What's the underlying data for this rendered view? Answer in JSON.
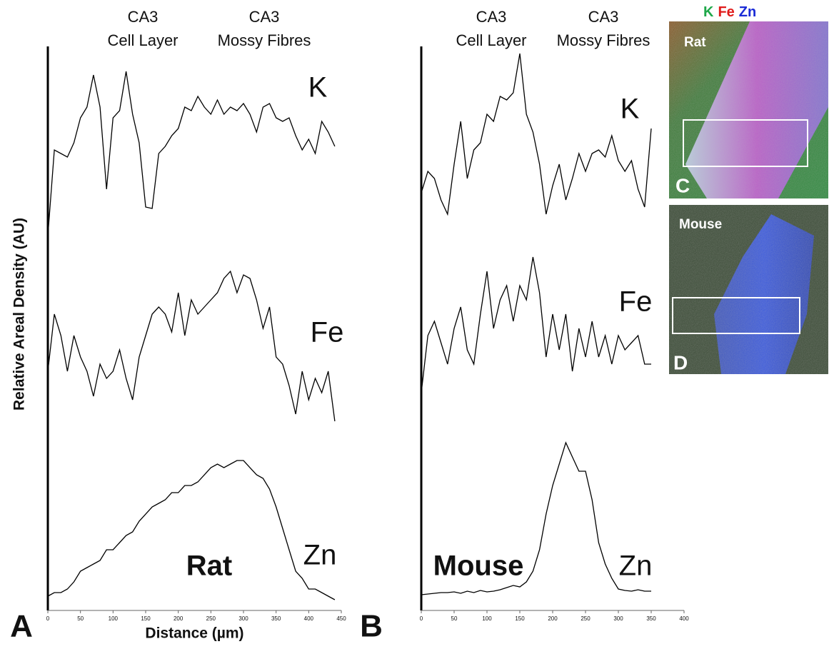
{
  "chart_data": [
    {
      "type": "line",
      "panel": "A",
      "species": "Rat",
      "region_labels": [
        [
          "CA3",
          "Cell Layer"
        ],
        [
          "CA3",
          "Mossy Fibres"
        ]
      ],
      "x_label": "Distance (µm)",
      "y_label": "Relative Areal Density (AU)",
      "xlim": [
        0,
        450
      ],
      "xticks": [
        0,
        50,
        100,
        150,
        200,
        250,
        300,
        350,
        400,
        450
      ],
      "ylim": [
        0,
        790
      ],
      "x": [
        0,
        10,
        20,
        30,
        40,
        50,
        60,
        70,
        80,
        90,
        100,
        110,
        120,
        130,
        140,
        150,
        160,
        170,
        180,
        190,
        200,
        210,
        220,
        230,
        240,
        250,
        260,
        270,
        280,
        290,
        300,
        310,
        320,
        330,
        340,
        350,
        360,
        370,
        380,
        390,
        400,
        410,
        420,
        430,
        440
      ],
      "series": [
        {
          "name": "K",
          "color": "#000000",
          "values": [
            525,
            645,
            640,
            635,
            655,
            690,
            705,
            750,
            705,
            590,
            690,
            700,
            755,
            695,
            655,
            565,
            563,
            640,
            650,
            665,
            675,
            705,
            700,
            720,
            705,
            695,
            715,
            695,
            705,
            700,
            710,
            695,
            670,
            705,
            710,
            690,
            685,
            690,
            665,
            645,
            660,
            640,
            685,
            670,
            650
          ]
        },
        {
          "name": "Fe",
          "color": "#000000",
          "values": [
            335,
            415,
            385,
            335,
            385,
            355,
            335,
            300,
            345,
            325,
            335,
            365,
            325,
            295,
            355,
            385,
            415,
            425,
            415,
            390,
            445,
            385,
            435,
            415,
            425,
            435,
            445,
            465,
            475,
            445,
            470,
            465,
            435,
            395,
            425,
            355,
            345,
            315,
            275,
            335,
            295,
            325,
            305,
            335,
            265
          ]
        },
        {
          "name": "Zn",
          "color": "#000000",
          "values": [
            20,
            25,
            25,
            30,
            40,
            55,
            60,
            65,
            70,
            85,
            85,
            95,
            105,
            110,
            125,
            135,
            145,
            150,
            155,
            165,
            165,
            175,
            175,
            180,
            190,
            200,
            205,
            200,
            205,
            210,
            210,
            200,
            190,
            185,
            170,
            145,
            115,
            85,
            55,
            45,
            30,
            30,
            25,
            20,
            15
          ]
        }
      ]
    },
    {
      "type": "line",
      "panel": "B",
      "species": "Mouse",
      "region_labels": [
        [
          "CA3",
          "Cell Layer"
        ],
        [
          "CA3",
          "Mossy Fibres"
        ]
      ],
      "xlim": [
        0,
        400
      ],
      "xticks": [
        0,
        50,
        100,
        150,
        200,
        250,
        300,
        350,
        400
      ],
      "ylim": [
        0,
        790
      ],
      "x": [
        0,
        10,
        20,
        30,
        40,
        50,
        60,
        70,
        80,
        90,
        100,
        110,
        120,
        130,
        140,
        150,
        160,
        170,
        180,
        190,
        200,
        210,
        220,
        230,
        240,
        250,
        260,
        270,
        280,
        290,
        300,
        310,
        320,
        330,
        340,
        350
      ],
      "series": [
        {
          "name": "K",
          "color": "#000000",
          "values": [
            585,
            615,
            605,
            575,
            555,
            625,
            685,
            605,
            645,
            655,
            695,
            685,
            720,
            715,
            725,
            780,
            695,
            670,
            625,
            555,
            595,
            625,
            575,
            605,
            640,
            615,
            640,
            645,
            635,
            665,
            630,
            615,
            630,
            590,
            565,
            675
          ]
        },
        {
          "name": "Fe",
          "color": "#000000",
          "values": [
            305,
            385,
            405,
            375,
            345,
            395,
            425,
            365,
            345,
            415,
            475,
            395,
            435,
            455,
            405,
            455,
            435,
            495,
            445,
            355,
            415,
            365,
            415,
            335,
            395,
            355,
            405,
            355,
            385,
            345,
            385,
            365,
            375,
            385,
            345,
            345
          ]
        },
        {
          "name": "Zn",
          "color": "#000000",
          "values": [
            22,
            23,
            24,
            25,
            25,
            26,
            24,
            27,
            25,
            28,
            26,
            27,
            29,
            32,
            35,
            33,
            40,
            55,
            85,
            135,
            175,
            205,
            235,
            215,
            195,
            195,
            155,
            95,
            65,
            45,
            30,
            28,
            27,
            29,
            27,
            27
          ]
        }
      ]
    }
  ],
  "images": {
    "legend": [
      {
        "text": "K",
        "color": "#1fa84a"
      },
      {
        "text": "Fe",
        "color": "#e01b1b"
      },
      {
        "text": "Zn",
        "color": "#1a2bd6"
      }
    ],
    "panels": [
      {
        "label": "Rat",
        "letter": "C"
      },
      {
        "label": "Mouse",
        "letter": "D"
      }
    ]
  }
}
